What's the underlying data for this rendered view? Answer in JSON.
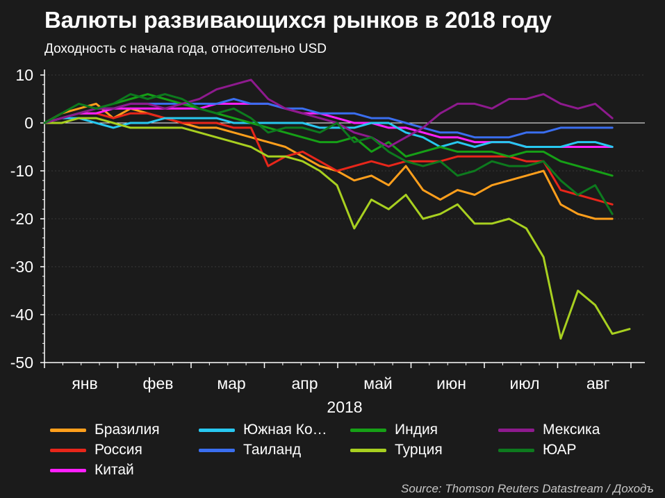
{
  "title": "Валюты развивающихся рынков в 2018 году",
  "subtitle": "Доходность с начала года, относительно USD",
  "source": "Source: Thomson Reuters Datastream / Доходъ",
  "colors": {
    "background": "#1b1b1b",
    "zero_line": "#ffffff",
    "grid": "#3a3a3a"
  },
  "chart_data": {
    "type": "line",
    "xlabel": "2018",
    "ylabel": "",
    "month_labels": [
      "янв",
      "фев",
      "мар",
      "апр",
      "май",
      "июн",
      "июл",
      "авг"
    ],
    "x_unit": "week of 2018",
    "xlim": [
      1,
      35
    ],
    "ylim": [
      -50,
      10
    ],
    "yticks": [
      10,
      0,
      -10,
      -20,
      -30,
      -40,
      -50
    ],
    "grid": true,
    "legend_position": "bottom",
    "series": [
      {
        "name": "Бразилия",
        "color": "#ff9f1c",
        "values": [
          0,
          2,
          3,
          4,
          1,
          3,
          2,
          1,
          0,
          -1,
          -1,
          -2,
          -3,
          -4,
          -5,
          -7,
          -9,
          -10,
          -12,
          -11,
          -13,
          -9,
          -14,
          -16,
          -14,
          -15,
          -13,
          -12,
          -11,
          -10,
          -17,
          -19,
          -20,
          -20
        ]
      },
      {
        "name": "Россия",
        "color": "#e8261a",
        "values": [
          0,
          1,
          2,
          2,
          1,
          2,
          2,
          1,
          0,
          0,
          0,
          -1,
          -1,
          -9,
          -7,
          -6,
          -8,
          -10,
          -9,
          -8,
          -9,
          -8,
          -8,
          -8,
          -7,
          -7,
          -7,
          -7,
          -8,
          -8,
          -14,
          -15,
          -16,
          -17
        ]
      },
      {
        "name": "Китай",
        "color": "#ff1fff",
        "values": [
          0,
          1,
          2,
          2,
          3,
          3,
          3,
          3,
          3,
          3,
          4,
          4,
          4,
          4,
          3,
          2,
          2,
          1,
          0,
          0,
          -1,
          -1,
          -2,
          -3,
          -3,
          -4,
          -4,
          -4,
          -5,
          -5,
          -5,
          -5,
          -5,
          -5
        ]
      },
      {
        "name": "Южная Ко…",
        "color": "#28c8f0",
        "values": [
          0,
          1,
          1,
          0,
          -1,
          0,
          0,
          1,
          1,
          1,
          1,
          0,
          0,
          0,
          0,
          0,
          -1,
          -1,
          -1,
          0,
          0,
          -2,
          -3,
          -5,
          -4,
          -5,
          -4,
          -4,
          -5,
          -5,
          -5,
          -4,
          -4,
          -5
        ]
      },
      {
        "name": "Таиланд",
        "color": "#3a6ef0",
        "values": [
          0,
          1,
          2,
          3,
          3,
          4,
          4,
          4,
          4,
          4,
          4,
          5,
          4,
          4,
          3,
          3,
          2,
          2,
          2,
          1,
          1,
          0,
          -1,
          -2,
          -2,
          -3,
          -3,
          -3,
          -2,
          -2,
          -1,
          -1,
          -1,
          -1
        ]
      },
      {
        "name": "Турция",
        "color": "#a8d020",
        "values": [
          0,
          0,
          1,
          1,
          0,
          -1,
          -1,
          -1,
          -1,
          -2,
          -3,
          -4,
          -5,
          -7,
          -7,
          -8,
          -10,
          -13,
          -22,
          -16,
          -18,
          -15,
          -20,
          -19,
          -17,
          -21,
          -21,
          -20,
          -22,
          -28,
          -45,
          -35,
          -38,
          -44,
          -43
        ]
      },
      {
        "name": "Индия",
        "color": "#16a016",
        "values": [
          0,
          1,
          2,
          3,
          4,
          5,
          6,
          5,
          4,
          3,
          2,
          1,
          0,
          -1,
          -2,
          -3,
          -4,
          -4,
          -3,
          -6,
          -4,
          -7,
          -6,
          -5,
          -6,
          -6,
          -6,
          -7,
          -6,
          -6,
          -8,
          -9,
          -10,
          -11
        ]
      },
      {
        "name": "Мексика",
        "color": "#8e1a8e",
        "values": [
          0,
          1,
          2,
          3,
          3,
          4,
          4,
          3,
          4,
          5,
          7,
          8,
          9,
          5,
          3,
          2,
          1,
          0,
          -2,
          -3,
          -5,
          -3,
          -1,
          2,
          4,
          4,
          3,
          5,
          5,
          6,
          4,
          3,
          4,
          1
        ]
      },
      {
        "name": "ЮАР",
        "color": "#0d7a1e",
        "values": [
          0,
          2,
          4,
          3,
          4,
          6,
          5,
          6,
          5,
          3,
          2,
          3,
          1,
          -2,
          -1,
          -1,
          -2,
          0,
          -4,
          -3,
          -6,
          -8,
          -9,
          -8,
          -11,
          -10,
          -8,
          -9,
          -9,
          -8,
          -12,
          -15,
          -13,
          -19
        ]
      }
    ]
  },
  "legend": {
    "items": [
      {
        "label": "Бразилия",
        "color": "#ff9f1c"
      },
      {
        "label": "Южная Ко…",
        "color": "#28c8f0"
      },
      {
        "label": "Индия",
        "color": "#16a016"
      },
      {
        "label": "Мексика",
        "color": "#8e1a8e"
      },
      {
        "label": "Россия",
        "color": "#e8261a"
      },
      {
        "label": "Таиланд",
        "color": "#3a6ef0"
      },
      {
        "label": "Турция",
        "color": "#a8d020"
      },
      {
        "label": "ЮАР",
        "color": "#0d7a1e"
      },
      {
        "label": "Китай",
        "color": "#ff1fff"
      }
    ]
  }
}
